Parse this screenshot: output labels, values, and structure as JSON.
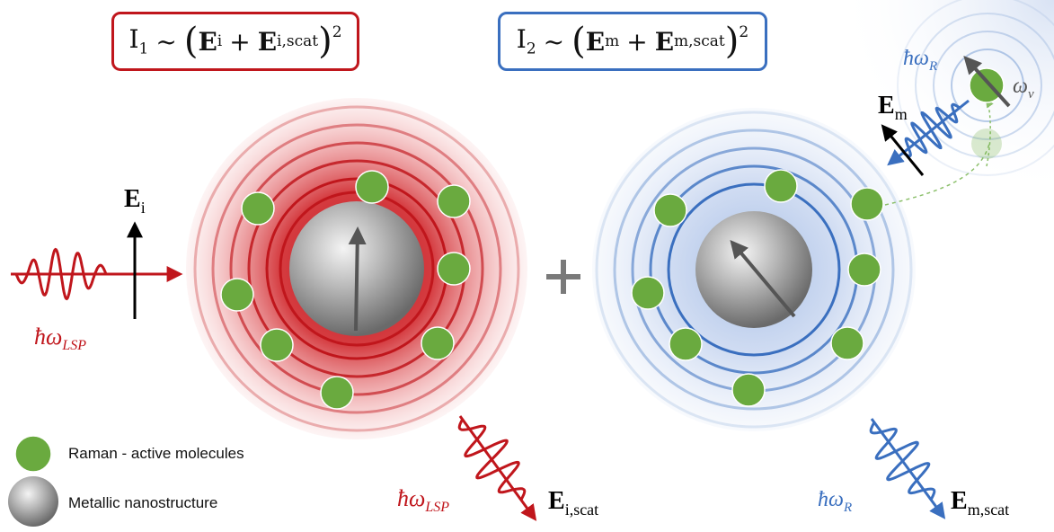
{
  "equations": {
    "eq1": {
      "intensity": "I",
      "intensity_sub": "1",
      "sim": "~",
      "field_a": "E",
      "field_a_sub": "i",
      "plus": "+",
      "field_b": "E",
      "field_b_sub": "i,scat",
      "exponent": "2"
    },
    "eq2": {
      "intensity": "I",
      "intensity_sub": "2",
      "sim": "~",
      "field_a": "E",
      "field_a_sub": "m",
      "plus": "+",
      "field_b": "E",
      "field_b_sub": "m,scat",
      "exponent": "2"
    }
  },
  "labels": {
    "e_incident": "E",
    "e_incident_sub": "i",
    "hw_lsp_incident": "ħω",
    "hw_lsp_incident_sub": "LSP",
    "plus_sign": "+",
    "e_iscat": "E",
    "e_iscat_sub": "i,scat",
    "hw_lsp_scat": "ħω",
    "hw_lsp_scat_sub": "LSP",
    "e_m": "E",
    "e_m_sub": "m",
    "hw_r_top": "ħω",
    "hw_r_top_sub": "R",
    "omega_v": "ω",
    "omega_v_sub": "ν",
    "hw_r_bottom": "ħω",
    "hw_r_bottom_sub": "R",
    "e_mscat": "E",
    "e_mscat_sub": "m,scat"
  },
  "legend": {
    "raman": "Raman - active molecules",
    "metal": "Metallic nanostructure"
  },
  "colors": {
    "red": "#c0161c",
    "blue": "#3a6fbf",
    "green": "#6aaa3f",
    "gray": "#5a5a5a"
  }
}
